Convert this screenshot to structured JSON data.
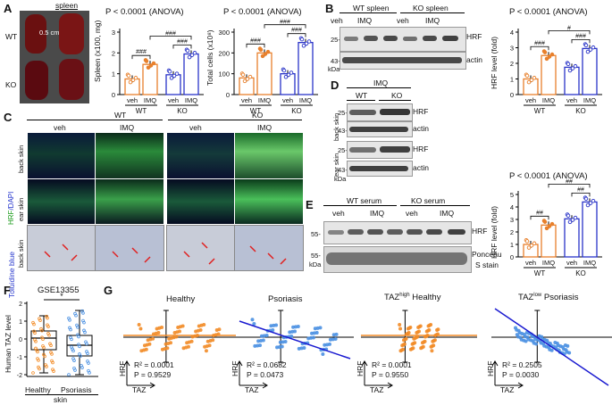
{
  "panels": {
    "A": "A",
    "B": "B",
    "C": "C",
    "D": "D",
    "E": "E",
    "F": "F",
    "G": "G"
  },
  "groups": {
    "veh": "veh",
    "imq": "IMQ",
    "wt": "WT",
    "ko": "KO"
  },
  "colors": {
    "veh": "#e8802c",
    "imq": "#e8802c",
    "ko_veh": "#2a34c8",
    "ko_imq": "#2a34c8",
    "healthy": "#f28c28",
    "psoriasis": "#4a90e2",
    "line_healthy": "#f28c28",
    "line_psoriasis": "#1a1ad0"
  },
  "panelA": {
    "photo_title": "spleen",
    "scale": "0.5 cm",
    "spleen_chart": {
      "title": "P < 0.0001 (ANOVA)",
      "ylabel": "Spleen (x100, mg)",
      "yticks": [
        "0",
        "1",
        "2",
        "3"
      ],
      "sig1": "###",
      "sig2": "###",
      "sig3": "###"
    },
    "cells_chart": {
      "title": "P < 0.0001 (ANOVA)",
      "ylabel": "Total cells (x10⁸)",
      "yticks": [
        "0",
        "100",
        "200",
        "300"
      ],
      "sig1": "###",
      "sig2": "###",
      "sig3": "###"
    }
  },
  "panelB": {
    "header_wt": "WT spleen",
    "header_ko": "KO spleen",
    "mw1": "25-",
    "mw2": "43-",
    "kda": "kDa",
    "band1": "HRF",
    "band2": "actin",
    "chart": {
      "title": "P < 0.0001 (ANOVA)",
      "ylabel": "HRF level (fold)",
      "yticks": [
        "0",
        "1",
        "2",
        "3",
        "4"
      ],
      "sig1": "###",
      "sig2": "#",
      "sig3": "###"
    }
  },
  "panelC": {
    "hrf": "HRF",
    "dapi": "/DAPI",
    "tol": "Toluidine blue",
    "row1": "back skin",
    "row2": "ear skin",
    "row3": "back skin"
  },
  "panelD": {
    "imq": "IMQ",
    "row1": "back skin",
    "row2": "ear skin",
    "mw1": "25-",
    "mw2": "43-",
    "mw3": "25-",
    "mw4": "43-",
    "kda": "kDa",
    "b1": "HRF",
    "b2": "actin",
    "b3": "HRF",
    "b4": "actin"
  },
  "panelE": {
    "header_wt": "WT serum",
    "header_ko": "KO serum",
    "mw1": "55-",
    "mw2": "55-",
    "kda": "kDa",
    "b1": "HRF",
    "b2": "Ponceau",
    "b2b": "S stain",
    "chart": {
      "title": "P < 0.0001 (ANOVA)",
      "ylabel": "HRF level (fold)",
      "yticks": [
        "0",
        "1",
        "2",
        "3",
        "4",
        "5"
      ],
      "sig1": "##",
      "sig2": "##",
      "sig3": "##"
    }
  },
  "panelF": {
    "title": "GSE13355",
    "ylabel": "Human TAZ level",
    "yticks": [
      "2",
      "1",
      "0",
      "-1",
      "-2"
    ],
    "sig": "*",
    "x1": "Healthy",
    "x2": "Psoriasis",
    "xlabel": "skin"
  },
  "panelG": {
    "plots": [
      {
        "title": "Healthy",
        "r2": "R² = 0.0001",
        "p": "P = 0.9529"
      },
      {
        "title": "Psoriasis",
        "r2": "R² = 0.0682",
        "p": "P = 0.0473"
      },
      {
        "title_main": "TAZ",
        "title_sup": "high",
        "title_rest": " Healthy",
        "r2": "R² = 0.0001",
        "p": "P = 0.9550"
      },
      {
        "title_main": "TAZ",
        "title_sup": "low",
        "title_rest": " Psoriasis",
        "r2": "R² = 0.2505",
        "p": "P = 0.0030"
      }
    ],
    "axis_y": "HRF",
    "axis_x": "TAZ"
  },
  "chart_data": [
    {
      "type": "bar",
      "title": "P < 0.0001 (ANOVA)",
      "ylabel": "Spleen (x100, mg)",
      "categories": [
        "WT veh",
        "WT IMQ",
        "KO veh",
        "KO IMQ"
      ],
      "values": [
        0.75,
        1.45,
        0.95,
        1.95
      ],
      "ylim": [
        0,
        3
      ]
    },
    {
      "type": "bar",
      "title": "P < 0.0001 (ANOVA)",
      "ylabel": "Total cells (x10⁸)",
      "categories": [
        "WT veh",
        "WT IMQ",
        "KO veh",
        "KO IMQ"
      ],
      "values": [
        80,
        200,
        100,
        250
      ],
      "ylim": [
        0,
        300
      ]
    },
    {
      "type": "bar",
      "title": "P < 0.0001 (ANOVA)",
      "ylabel": "HRF level (fold)",
      "categories": [
        "WT veh",
        "WT IMQ",
        "KO veh",
        "KO IMQ"
      ],
      "values": [
        1.0,
        2.5,
        1.75,
        2.95
      ],
      "ylim": [
        0,
        4
      ]
    },
    {
      "type": "bar",
      "title": "P < 0.0001 (ANOVA)",
      "ylabel": "HRF level (fold)",
      "categories": [
        "WT veh",
        "WT IMQ",
        "KO veh",
        "KO IMQ"
      ],
      "values": [
        1.0,
        2.55,
        3.05,
        4.4
      ],
      "ylim": [
        0,
        5
      ]
    }
  ]
}
